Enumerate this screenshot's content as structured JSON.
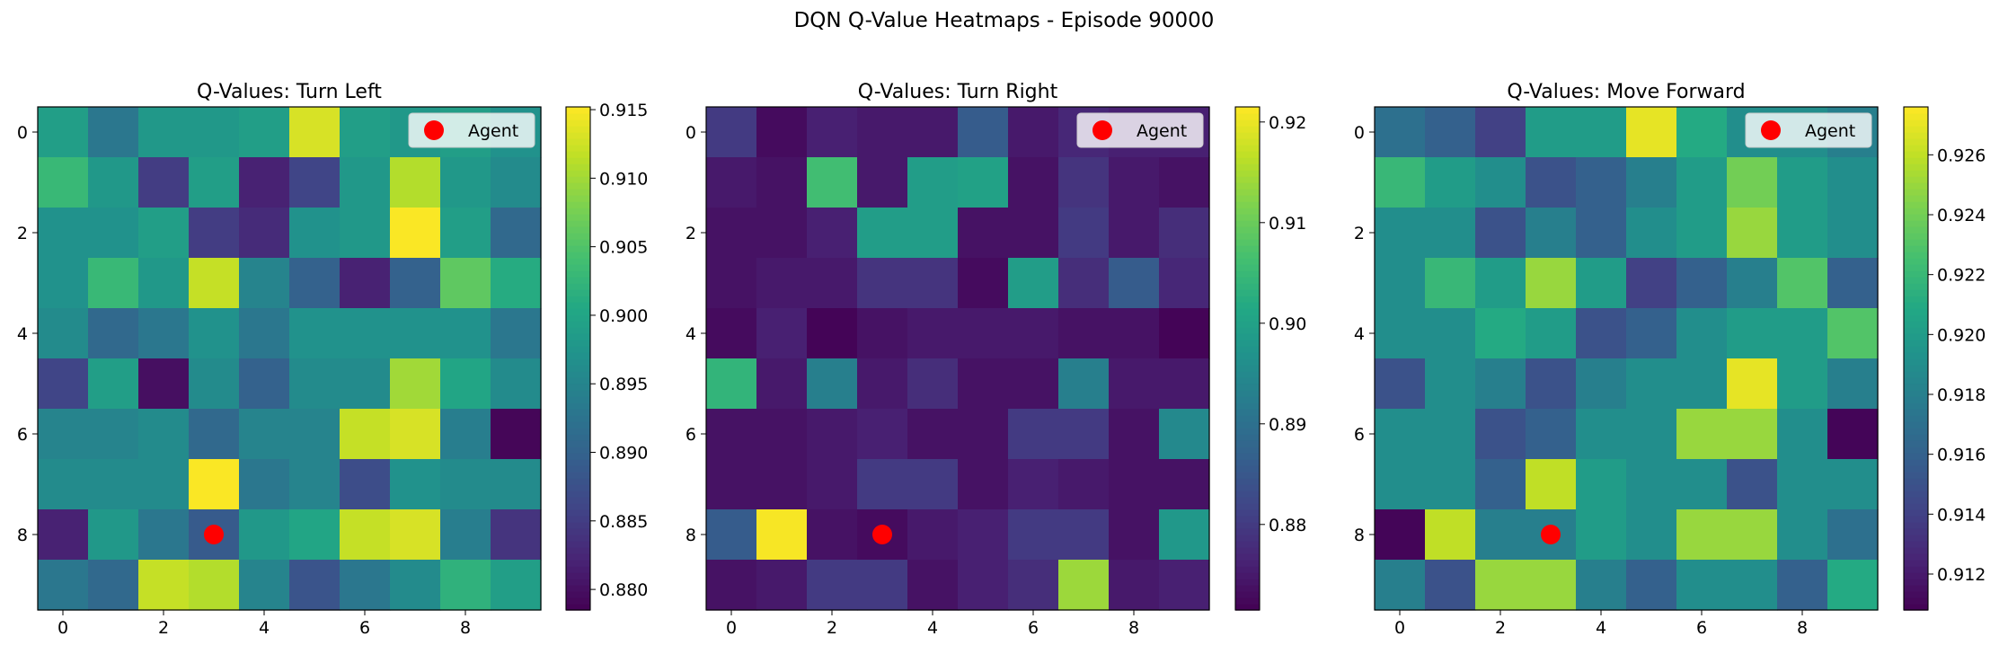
{
  "figure": {
    "title": "DQN Q-Value Heatmaps - Episode 90000"
  },
  "chart_data": [
    {
      "type": "heatmap",
      "title": "Q-Values: Turn Left",
      "xlabel": "",
      "ylabel": "",
      "x_ticks": [
        "0",
        "2",
        "4",
        "6",
        "8"
      ],
      "y_ticks": [
        "0",
        "2",
        "4",
        "6",
        "8"
      ],
      "colormap": "viridis",
      "vmin": 0.8785,
      "vmax": 0.9152,
      "colorbar_ticks": [
        "0.880",
        "0.885",
        "0.890",
        "0.895",
        "0.900",
        "0.905",
        "0.910",
        "0.915"
      ],
      "colorbar_values": [
        0.88,
        0.885,
        0.89,
        0.895,
        0.9,
        0.905,
        0.91,
        0.915
      ],
      "legend": {
        "label": "Agent",
        "location": "upper right"
      },
      "agent": {
        "x": 3,
        "y": 8,
        "color": "#ff0000"
      },
      "grid": [
        [
          0.899,
          0.893,
          0.898,
          0.898,
          0.899,
          0.913,
          0.899,
          0.898,
          0.899,
          0.897
        ],
        [
          0.903,
          0.898,
          0.885,
          0.899,
          0.882,
          0.886,
          0.898,
          0.911,
          0.898,
          0.896
        ],
        [
          0.897,
          0.897,
          0.899,
          0.885,
          0.883,
          0.897,
          0.898,
          0.915,
          0.899,
          0.891
        ],
        [
          0.897,
          0.903,
          0.898,
          0.912,
          0.895,
          0.89,
          0.882,
          0.89,
          0.906,
          0.901
        ],
        [
          0.896,
          0.891,
          0.893,
          0.897,
          0.893,
          0.897,
          0.897,
          0.897,
          0.897,
          0.893
        ],
        [
          0.886,
          0.899,
          0.88,
          0.896,
          0.89,
          0.896,
          0.896,
          0.91,
          0.9,
          0.896
        ],
        [
          0.895,
          0.895,
          0.896,
          0.891,
          0.895,
          0.895,
          0.912,
          0.913,
          0.894,
          0.879
        ],
        [
          0.896,
          0.896,
          0.896,
          0.915,
          0.893,
          0.895,
          0.887,
          0.897,
          0.896,
          0.896
        ],
        [
          0.882,
          0.898,
          0.893,
          0.889,
          0.898,
          0.9,
          0.912,
          0.913,
          0.894,
          0.884
        ],
        [
          0.893,
          0.891,
          0.912,
          0.911,
          0.895,
          0.888,
          0.893,
          0.896,
          0.902,
          0.899
        ]
      ]
    },
    {
      "type": "heatmap",
      "title": "Q-Values: Turn Right",
      "xlabel": "",
      "ylabel": "",
      "x_ticks": [
        "0",
        "2",
        "4",
        "6",
        "8"
      ],
      "y_ticks": [
        "0",
        "2",
        "4",
        "6",
        "8"
      ],
      "colormap": "viridis",
      "vmin": 0.8715,
      "vmax": 0.9215,
      "colorbar_ticks": [
        "0.88",
        "0.89",
        "0.90",
        "0.91",
        "0.92"
      ],
      "colorbar_values": [
        0.88,
        0.89,
        0.9,
        0.91,
        0.92
      ],
      "legend": {
        "label": "Agent",
        "location": "upper right"
      },
      "agent": {
        "x": 3,
        "y": 8,
        "color": "#ff0000"
      },
      "grid": [
        [
          0.88,
          0.873,
          0.876,
          0.875,
          0.875,
          0.886,
          0.875,
          0.877,
          0.876,
          0.876
        ],
        [
          0.875,
          0.874,
          0.906,
          0.875,
          0.899,
          0.9,
          0.874,
          0.879,
          0.875,
          0.874
        ],
        [
          0.874,
          0.874,
          0.876,
          0.899,
          0.899,
          0.874,
          0.874,
          0.88,
          0.875,
          0.878
        ],
        [
          0.874,
          0.875,
          0.875,
          0.879,
          0.879,
          0.873,
          0.899,
          0.878,
          0.886,
          0.877
        ],
        [
          0.873,
          0.876,
          0.872,
          0.874,
          0.875,
          0.875,
          0.875,
          0.874,
          0.874,
          0.872
        ],
        [
          0.904,
          0.875,
          0.893,
          0.875,
          0.878,
          0.874,
          0.874,
          0.893,
          0.875,
          0.875
        ],
        [
          0.874,
          0.874,
          0.875,
          0.876,
          0.874,
          0.874,
          0.88,
          0.88,
          0.874,
          0.895
        ],
        [
          0.874,
          0.874,
          0.875,
          0.88,
          0.88,
          0.874,
          0.876,
          0.875,
          0.874,
          0.874
        ],
        [
          0.886,
          0.921,
          0.874,
          0.873,
          0.875,
          0.876,
          0.88,
          0.88,
          0.874,
          0.898
        ],
        [
          0.874,
          0.875,
          0.88,
          0.88,
          0.874,
          0.876,
          0.878,
          0.914,
          0.875,
          0.876
        ]
      ]
    },
    {
      "type": "heatmap",
      "title": "Q-Values: Move Forward",
      "xlabel": "",
      "ylabel": "",
      "x_ticks": [
        "0",
        "2",
        "4",
        "6",
        "8"
      ],
      "y_ticks": [
        "0",
        "2",
        "4",
        "6",
        "8"
      ],
      "colormap": "viridis",
      "vmin": 0.9108,
      "vmax": 0.9276,
      "colorbar_ticks": [
        "0.912",
        "0.914",
        "0.916",
        "0.918",
        "0.920",
        "0.922",
        "0.924",
        "0.926"
      ],
      "colorbar_values": [
        0.912,
        0.914,
        0.916,
        0.918,
        0.92,
        0.922,
        0.924,
        0.926
      ],
      "legend": {
        "label": "Agent",
        "location": "upper right"
      },
      "agent": {
        "x": 3,
        "y": 8,
        "color": "#ff0000"
      },
      "grid": [
        [
          0.917,
          0.916,
          0.914,
          0.92,
          0.92,
          0.927,
          0.921,
          0.919,
          0.919,
          0.918
        ],
        [
          0.922,
          0.92,
          0.919,
          0.915,
          0.916,
          0.918,
          0.92,
          0.924,
          0.92,
          0.919
        ],
        [
          0.919,
          0.919,
          0.915,
          0.918,
          0.916,
          0.919,
          0.92,
          0.925,
          0.92,
          0.919
        ],
        [
          0.919,
          0.922,
          0.92,
          0.925,
          0.92,
          0.914,
          0.916,
          0.918,
          0.923,
          0.916
        ],
        [
          0.919,
          0.919,
          0.921,
          0.92,
          0.915,
          0.916,
          0.919,
          0.92,
          0.92,
          0.923
        ],
        [
          0.915,
          0.919,
          0.918,
          0.915,
          0.918,
          0.919,
          0.919,
          0.927,
          0.92,
          0.918
        ],
        [
          0.919,
          0.919,
          0.915,
          0.916,
          0.919,
          0.919,
          0.925,
          0.925,
          0.919,
          0.911
        ],
        [
          0.919,
          0.919,
          0.916,
          0.926,
          0.92,
          0.919,
          0.919,
          0.915,
          0.919,
          0.919
        ],
        [
          0.911,
          0.926,
          0.918,
          0.918,
          0.92,
          0.919,
          0.925,
          0.925,
          0.919,
          0.917
        ],
        [
          0.918,
          0.915,
          0.925,
          0.925,
          0.918,
          0.916,
          0.919,
          0.919,
          0.916,
          0.921
        ]
      ]
    }
  ]
}
